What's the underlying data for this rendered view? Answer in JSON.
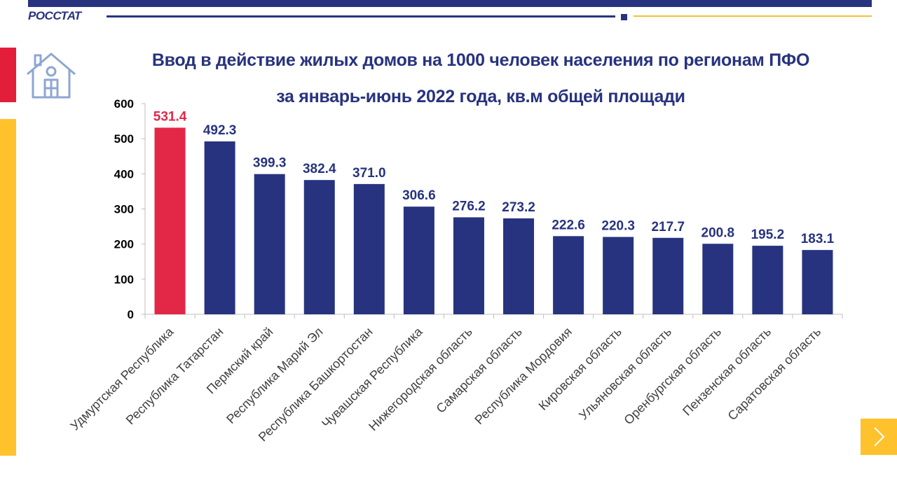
{
  "header": {
    "brand": "РОССТАТ"
  },
  "icons": {
    "house": "house-icon",
    "next": "chevron-right-icon"
  },
  "colors": {
    "primary": "#27337f",
    "highlight": "#e32747",
    "accent_yellow": "#ffc22d",
    "accent_red": "#e31e3b"
  },
  "chart_data": {
    "type": "bar",
    "title": [
      "Ввод в действие жилых домов на 1000 человек населения по регионам ПФО",
      "за январь-июнь 2022 года, кв.м общей площади"
    ],
    "categories": [
      "Удмуртская Республика",
      "Республика Татарстан",
      "Пермский край",
      "Республика  Марий Эл",
      "Республика Башкортостан",
      "Чувашская Республика",
      "Нижегородская область",
      "Самарская область",
      "Республика Мордовия",
      "Кировская область",
      "Ульяновская область",
      "Оренбургская область",
      "Пензенская область",
      "Саратовская область"
    ],
    "values": [
      531.4,
      492.3,
      399.3,
      382.4,
      371.0,
      306.6,
      276.2,
      273.2,
      222.6,
      220.3,
      217.7,
      200.8,
      195.2,
      183.1
    ],
    "value_labels": [
      "531.4",
      "492.3",
      "399.3",
      "382.4",
      "371.0",
      "306.6",
      "276.2",
      "273.2",
      "222.6",
      "220.3",
      "217.7",
      "200.8",
      "195.2",
      "183.1"
    ],
    "highlight_index": 0,
    "ylim": [
      0,
      600
    ],
    "yticks": [
      0,
      100,
      200,
      300,
      400,
      500,
      600
    ],
    "xlabel": "",
    "ylabel": "",
    "grid": false,
    "legend": "none"
  }
}
